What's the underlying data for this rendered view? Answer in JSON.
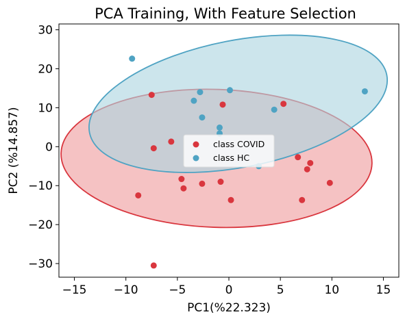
{
  "chart_data": {
    "type": "scatter",
    "title": "PCA Training, With Feature Selection",
    "xlabel": "PC1(%22.323)",
    "ylabel": "PC2 (%14.857)",
    "xlim": [
      -16.5,
      16.5
    ],
    "ylim": [
      -33.5,
      31.5
    ],
    "xticks": [
      -15,
      -10,
      -5,
      0,
      5,
      10,
      15
    ],
    "yticks": [
      -30,
      -20,
      -10,
      0,
      10,
      20,
      30
    ],
    "xtick_labels": [
      "−15",
      "−10",
      "−5",
      "0",
      "5",
      "10",
      "15"
    ],
    "ytick_labels": [
      "−30",
      "−20",
      "−10",
      "0",
      "10",
      "20",
      "30"
    ],
    "grid": false,
    "legend_position": "center",
    "series": [
      {
        "name": "class COVID",
        "color": "#d9363e",
        "points": [
          [
            -7.3,
            -30.5
          ],
          [
            -8.8,
            -12.5
          ],
          [
            -4.6,
            -8.3
          ],
          [
            -4.4,
            -10.7
          ],
          [
            -2.6,
            -9.5
          ],
          [
            -0.8,
            -9.0
          ],
          [
            0.2,
            -13.7
          ],
          [
            7.1,
            -13.7
          ],
          [
            9.8,
            -9.3
          ],
          [
            7.6,
            -5.8
          ],
          [
            7.9,
            -4.2
          ],
          [
            6.7,
            -2.7
          ],
          [
            -7.3,
            -0.4
          ],
          [
            -5.6,
            1.3
          ],
          [
            -7.5,
            13.3
          ],
          [
            -0.6,
            10.8
          ],
          [
            5.3,
            11.0
          ]
        ],
        "ellipse": {
          "center": [
            -1.2,
            -3.0
          ],
          "semi_axes": [
            15.1,
            17.7
          ],
          "angle_deg": 2,
          "fill": "#ef9a9b",
          "fill_opacity": 0.6,
          "edge": "#d9363e"
        }
      },
      {
        "name": "class HC",
        "color": "#4fa3c3",
        "points": [
          [
            -9.4,
            22.6
          ],
          [
            -2.8,
            14.0
          ],
          [
            -3.4,
            11.8
          ],
          [
            0.1,
            14.5
          ],
          [
            -2.6,
            7.5
          ],
          [
            -0.9,
            4.9
          ],
          [
            -0.9,
            3.4
          ],
          [
            4.4,
            9.5
          ],
          [
            13.2,
            14.2
          ],
          [
            2.9,
            -5.0
          ]
        ],
        "ellipse": {
          "center": [
            0.9,
            11.0
          ],
          "semi_axes": [
            14.7,
            16.3
          ],
          "angle_deg": -11,
          "fill": "#add5e1",
          "fill_opacity": 0.62,
          "edge": "#4fa3c3"
        }
      }
    ]
  }
}
